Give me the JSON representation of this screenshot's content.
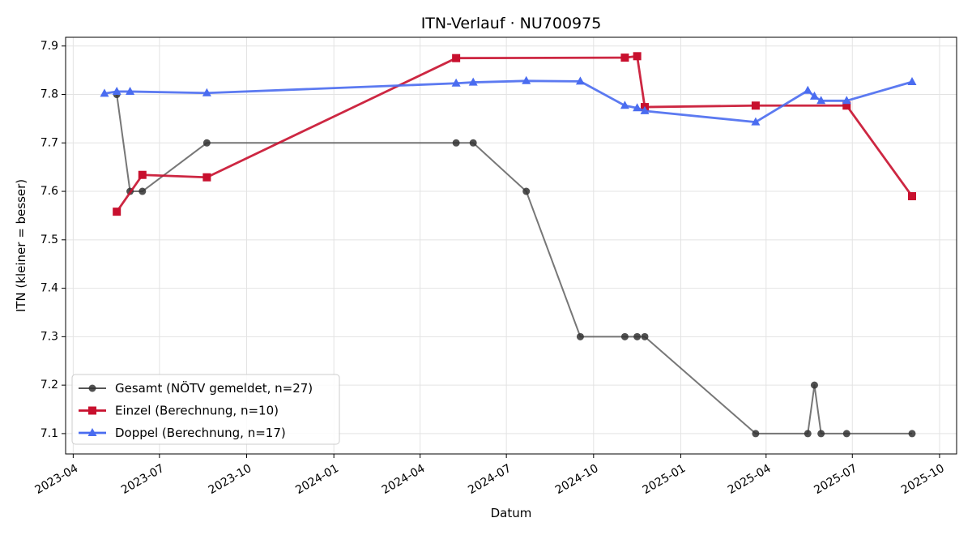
{
  "chart_data": {
    "type": "line",
    "title": "ITN-Verlauf · NU700975",
    "xlabel": "Datum",
    "ylabel": "ITN  (kleiner = besser)",
    "xlim": [
      "2023-03-24",
      "2025-10-19"
    ],
    "ylim": [
      7.058,
      7.918
    ],
    "x_ticks": [
      "2023-04",
      "2023-07",
      "2023-10",
      "2024-01",
      "2024-04",
      "2024-07",
      "2024-10",
      "2025-01",
      "2025-04",
      "2025-07",
      "2025-10"
    ],
    "y_ticks": [
      7.1,
      7.2,
      7.3,
      7.4,
      7.5,
      7.6,
      7.7,
      7.8,
      7.9
    ],
    "grid": true,
    "legend_position": "lower-left",
    "series": [
      {
        "name": "Gesamt (NÖTV gemeldet, n=27)",
        "color": "#555555",
        "marker": "circle",
        "points": [
          {
            "x": "2023-05-17",
            "y": 7.8
          },
          {
            "x": "2023-05-31",
            "y": 7.6
          },
          {
            "x": "2023-06-13",
            "y": 7.6
          },
          {
            "x": "2023-08-20",
            "y": 7.7
          },
          {
            "x": "2024-05-09",
            "y": 7.7
          },
          {
            "x": "2024-05-27",
            "y": 7.7
          },
          {
            "x": "2024-07-22",
            "y": 7.6
          },
          {
            "x": "2024-09-17",
            "y": 7.3
          },
          {
            "x": "2024-11-03",
            "y": 7.3
          },
          {
            "x": "2024-11-16",
            "y": 7.3
          },
          {
            "x": "2024-11-24",
            "y": 7.3
          },
          {
            "x": "2025-03-21",
            "y": 7.1
          },
          {
            "x": "2025-05-15",
            "y": 7.1
          },
          {
            "x": "2025-05-22",
            "y": 7.2
          },
          {
            "x": "2025-05-29",
            "y": 7.1
          },
          {
            "x": "2025-06-25",
            "y": 7.1
          },
          {
            "x": "2025-09-02",
            "y": 7.1
          }
        ]
      },
      {
        "name": "Einzel (Berechnung, n=10)",
        "color": "#c8102e",
        "marker": "square",
        "points": [
          {
            "x": "2023-05-17",
            "y": 7.558
          },
          {
            "x": "2023-06-13",
            "y": 7.634
          },
          {
            "x": "2023-08-20",
            "y": 7.629
          },
          {
            "x": "2024-05-09",
            "y": 7.875
          },
          {
            "x": "2024-11-03",
            "y": 7.876
          },
          {
            "x": "2024-11-16",
            "y": 7.879
          },
          {
            "x": "2024-11-24",
            "y": 7.774
          },
          {
            "x": "2025-03-21",
            "y": 7.777
          },
          {
            "x": "2025-06-25",
            "y": 7.777
          },
          {
            "x": "2025-09-02",
            "y": 7.59
          }
        ]
      },
      {
        "name": "Doppel (Berechnung, n=17)",
        "color": "#4a6cf0",
        "marker": "triangle",
        "points": [
          {
            "x": "2023-05-04",
            "y": 7.802
          },
          {
            "x": "2023-05-17",
            "y": 7.806
          },
          {
            "x": "2023-05-31",
            "y": 7.806
          },
          {
            "x": "2023-08-20",
            "y": 7.803
          },
          {
            "x": "2024-05-09",
            "y": 7.823
          },
          {
            "x": "2024-05-27",
            "y": 7.825
          },
          {
            "x": "2024-07-22",
            "y": 7.828
          },
          {
            "x": "2024-09-17",
            "y": 7.827
          },
          {
            "x": "2024-11-03",
            "y": 7.777
          },
          {
            "x": "2024-11-16",
            "y": 7.772
          },
          {
            "x": "2024-11-24",
            "y": 7.766
          },
          {
            "x": "2025-03-21",
            "y": 7.743
          },
          {
            "x": "2025-05-15",
            "y": 7.808
          },
          {
            "x": "2025-05-22",
            "y": 7.796
          },
          {
            "x": "2025-05-29",
            "y": 7.787
          },
          {
            "x": "2025-06-25",
            "y": 7.787
          },
          {
            "x": "2025-09-02",
            "y": 7.826
          }
        ]
      }
    ]
  }
}
